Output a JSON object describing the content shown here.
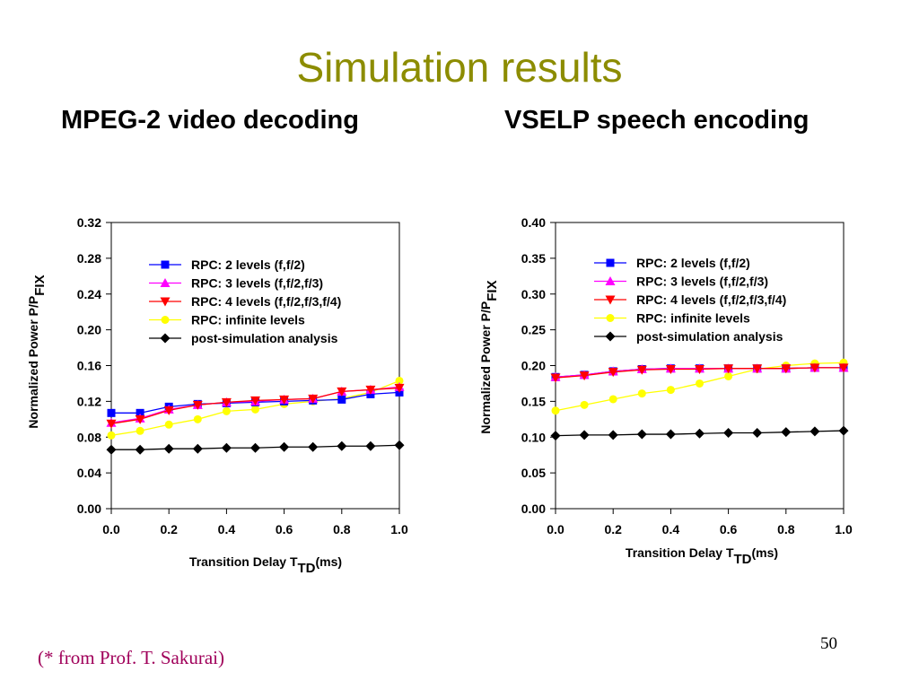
{
  "slide": {
    "title": "Simulation results",
    "page_number": "50",
    "source_note": "(* from Prof. T. Sakurai)"
  },
  "colors": {
    "title": "#8c8c00",
    "rpc2": "#0000ff",
    "rpc3": "#ff00ff",
    "rpc4": "#ff0000",
    "infinite": "#ffff00",
    "post": "#000000"
  },
  "chart_data": [
    {
      "type": "line",
      "title": "MPEG-2 video decoding",
      "xlabel": "Transition Delay T",
      "xlabel_sub": "TD",
      "xlabel_suffix": "(ms)",
      "ylabel": "Normalized Power P/P",
      "ylabel_sub": "FIX",
      "xlim": [
        0,
        1
      ],
      "ylim": [
        0,
        0.32
      ],
      "x_ticks": [
        "0.0",
        "0.2",
        "0.4",
        "0.6",
        "0.8",
        "1.0"
      ],
      "y_ticks": [
        "0.00",
        "0.04",
        "0.08",
        "0.12",
        "0.16",
        "0.20",
        "0.24",
        "0.28",
        "0.32"
      ],
      "grid": false,
      "legend_position": "upper-center",
      "x": [
        0,
        0.1,
        0.2,
        0.3,
        0.4,
        0.5,
        0.6,
        0.7,
        0.8,
        0.9,
        1.0
      ],
      "series": [
        {
          "name": "RPC: 2 levels (f,f/2)",
          "marker": "square",
          "color_key": "rpc2",
          "values": [
            0.107,
            0.107,
            0.114,
            0.117,
            0.118,
            0.119,
            0.12,
            0.121,
            0.122,
            0.128,
            0.13
          ]
        },
        {
          "name": "RPC: 3 levels (f,f/2,f/3)",
          "marker": "triangle-up",
          "color_key": "rpc3",
          "values": [
            0.096,
            0.101,
            0.111,
            0.116,
            0.119,
            0.12,
            0.122,
            0.123,
            0.131,
            0.133,
            0.136
          ]
        },
        {
          "name": "RPC: 4 levels (f,f/2,f/3,f/4)",
          "marker": "triangle-down",
          "color_key": "rpc4",
          "values": [
            0.095,
            0.1,
            0.11,
            0.116,
            0.119,
            0.121,
            0.122,
            0.123,
            0.131,
            0.133,
            0.135
          ]
        },
        {
          "name": "RPC: infinite levels",
          "marker": "circle",
          "color_key": "infinite",
          "values": [
            0.082,
            0.087,
            0.094,
            0.1,
            0.109,
            0.111,
            0.117,
            0.12,
            0.123,
            0.13,
            0.143
          ]
        },
        {
          "name": "post-simulation analysis",
          "marker": "diamond",
          "color_key": "post",
          "values": [
            0.066,
            0.066,
            0.067,
            0.067,
            0.068,
            0.068,
            0.069,
            0.069,
            0.07,
            0.07,
            0.071
          ]
        }
      ]
    },
    {
      "type": "line",
      "title": "VSELP speech encoding",
      "xlabel": "Transition Delay T",
      "xlabel_sub": "TD",
      "xlabel_suffix": "(ms)",
      "ylabel": "Normalized Power P/P",
      "ylabel_sub": "FIX",
      "xlim": [
        0,
        1
      ],
      "ylim": [
        0,
        0.4
      ],
      "x_ticks": [
        "0.0",
        "0.2",
        "0.4",
        "0.6",
        "0.8",
        "1.0"
      ],
      "y_ticks": [
        "0.00",
        "0.05",
        "0.10",
        "0.15",
        "0.20",
        "0.25",
        "0.30",
        "0.35",
        "0.40"
      ],
      "grid": false,
      "legend_position": "upper-center",
      "x": [
        0,
        0.1,
        0.2,
        0.3,
        0.4,
        0.5,
        0.6,
        0.7,
        0.8,
        0.9,
        1.0
      ],
      "series": [
        {
          "name": "RPC: 2 levels (f,f/2)",
          "marker": "square",
          "color_key": "rpc2",
          "values": [
            0.184,
            0.187,
            0.192,
            0.195,
            0.196,
            0.196,
            0.196,
            0.196,
            0.196,
            0.197,
            0.197
          ]
        },
        {
          "name": "RPC: 3 levels (f,f/2,f/3)",
          "marker": "triangle-up",
          "color_key": "rpc3",
          "values": [
            0.184,
            0.187,
            0.192,
            0.195,
            0.196,
            0.196,
            0.196,
            0.196,
            0.196,
            0.197,
            0.197
          ]
        },
        {
          "name": "RPC: 4 levels (f,f/2,f/3,f/4)",
          "marker": "triangle-down",
          "color_key": "rpc4",
          "values": [
            0.183,
            0.186,
            0.191,
            0.194,
            0.195,
            0.195,
            0.196,
            0.196,
            0.196,
            0.197,
            0.197
          ]
        },
        {
          "name": "RPC: infinite levels",
          "marker": "circle",
          "color_key": "infinite",
          "values": [
            0.137,
            0.145,
            0.153,
            0.161,
            0.166,
            0.175,
            0.185,
            0.195,
            0.2,
            0.203,
            0.204
          ]
        },
        {
          "name": "post-simulation analysis",
          "marker": "diamond",
          "color_key": "post",
          "values": [
            0.102,
            0.103,
            0.103,
            0.104,
            0.104,
            0.105,
            0.106,
            0.106,
            0.107,
            0.108,
            0.109
          ]
        }
      ]
    }
  ]
}
